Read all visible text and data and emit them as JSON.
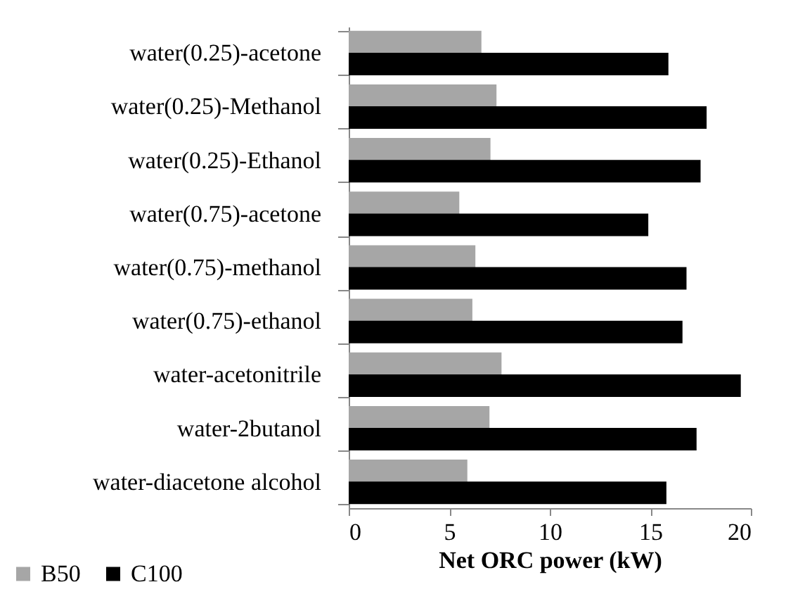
{
  "chart_data": {
    "type": "bar",
    "orientation": "horizontal",
    "xlabel": "Net ORC power (kW)",
    "categories": [
      "water(0.25)-acetone",
      "water(0.25)-Methanol",
      "water(0.25)-Ethanol",
      "water(0.75)-acetone",
      "water(0.75)-methanol",
      "water(0.75)-ethanol",
      "water-acetonitrile",
      "water-2butanol",
      "water-diacetone alcohol"
    ],
    "series": [
      {
        "name": "B50",
        "color": "#a6a6a6",
        "values": [
          6.6,
          7.35,
          7.05,
          5.5,
          6.3,
          6.15,
          7.6,
          7.0,
          5.9
        ]
      },
      {
        "name": "C100",
        "color": "#000000",
        "values": [
          15.9,
          17.8,
          17.5,
          14.9,
          16.8,
          16.6,
          19.5,
          17.3,
          15.8
        ]
      }
    ],
    "xlim": [
      0,
      20
    ],
    "xticks": [
      0,
      5,
      10,
      15,
      20
    ],
    "grid": false,
    "legend": "bottom left"
  }
}
